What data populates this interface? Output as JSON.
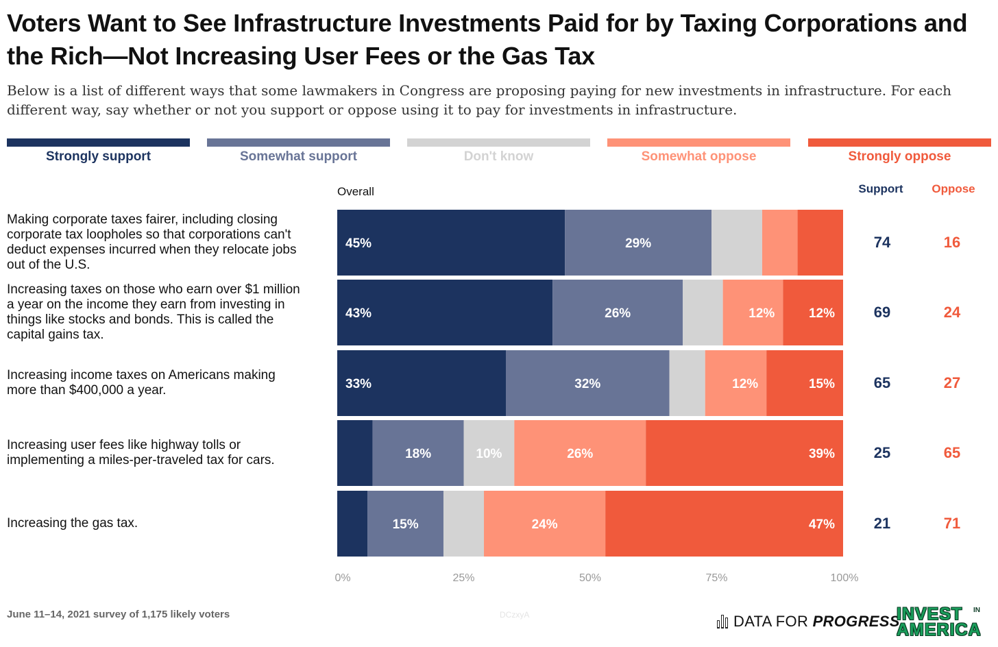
{
  "title": "Voters Want to See Infrastructure Investments Paid for by Taxing Corporations and the Rich—Not Increasing User Fees or the Gas Tax",
  "subtitle": "Below is a list of different ways that some lawmakers in Congress are proposing paying for new investments in infrastructure. For each different way, say whether or not you support or oppose using it to pay for investments in infrastructure.",
  "colors": {
    "strongly_support": "#1c335f",
    "somewhat_support": "#687496",
    "dont_know": "#d3d3d3",
    "somewhat_oppose": "#fe9277",
    "strongly_oppose": "#f05a3c"
  },
  "legend": [
    {
      "label": "Strongly support",
      "color": "#1c335f"
    },
    {
      "label": "Somewhat support",
      "color": "#687496"
    },
    {
      "label": "Don't know",
      "color": "#d3d3d3"
    },
    {
      "label": "Somewhat oppose",
      "color": "#fe9277"
    },
    {
      "label": "Strongly oppose",
      "color": "#f05a3c"
    }
  ],
  "column_headers": {
    "overall": "Overall",
    "support": "Support",
    "oppose": "Oppose"
  },
  "chart_data": {
    "type": "bar",
    "orientation": "horizontal",
    "stacked": true,
    "normalized": true,
    "categories": [
      "Making corporate taxes fairer, including closing corporate tax loopholes so that corporations can't deduct expenses incurred when they relocate jobs out of the U.S.",
      "Increasing taxes on those who earn over $1 million a year on the income they earn from investing in things like stocks and bonds. This is called the capital gains tax.",
      "Increasing income taxes on Americans making more than $400,000 a year.",
      "Increasing user fees like highway tolls or implementing a miles-per-traveled tax for cars.",
      "Increasing the gas tax."
    ],
    "category_lines": [
      [
        "Making corporate taxes fairer, including closing",
        "corporate tax loopholes so that corporations can't",
        "deduct expenses incurred when they relocate jobs",
        "out of the U.S."
      ],
      [
        "Increasing taxes on those who earn over $1 million",
        "a year on the income they earn from investing in",
        "things like stocks and bonds. This is called the",
        "capital gains tax."
      ],
      [
        "Increasing income taxes on Americans making",
        "more than $400,000 a year."
      ],
      [
        "Increasing user fees like highway tolls or",
        "implementing a miles-per-traveled tax for cars."
      ],
      [
        "Increasing the gas tax."
      ]
    ],
    "series": [
      {
        "name": "Strongly support",
        "values": [
          45,
          43,
          33,
          7,
          6
        ],
        "labels": [
          "45%",
          "43%",
          "33%",
          "",
          ""
        ]
      },
      {
        "name": "Somewhat support",
        "values": [
          29,
          26,
          32,
          18,
          15
        ],
        "labels": [
          "29%",
          "26%",
          "32%",
          "18%",
          "15%"
        ]
      },
      {
        "name": "Don't know",
        "values": [
          10,
          8,
          7,
          10,
          8
        ],
        "labels": [
          "",
          "",
          "",
          "10%",
          ""
        ]
      },
      {
        "name": "Somewhat oppose",
        "values": [
          7,
          12,
          12,
          26,
          24
        ],
        "labels": [
          "",
          "12%",
          "12%",
          "26%",
          "24%"
        ]
      },
      {
        "name": "Strongly oppose",
        "values": [
          9,
          12,
          15,
          39,
          47
        ],
        "labels": [
          "",
          "12%",
          "15%",
          "39%",
          "47%"
        ]
      }
    ],
    "net_support": [
      74,
      69,
      65,
      25,
      21
    ],
    "net_oppose": [
      16,
      24,
      27,
      65,
      71
    ],
    "xlim": [
      0,
      100
    ],
    "xticks": [
      "0%",
      "25%",
      "50%",
      "75%",
      "100%"
    ],
    "xtick_values": [
      0,
      25,
      50,
      75,
      100
    ]
  },
  "footer": {
    "note": "June 11–14, 2021 survey of 1,175 likely voters",
    "watermark": "DCzxyA",
    "dfp_brand_light": "DATA FOR",
    "dfp_brand_bold": "PROGRESS",
    "iia_line1": "INVEST",
    "iia_line2": "AMERICA",
    "iia_small": "IN"
  }
}
